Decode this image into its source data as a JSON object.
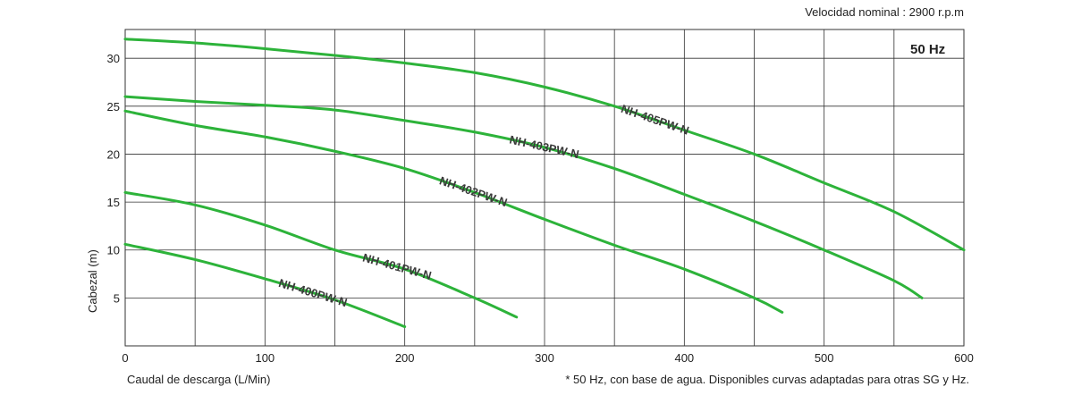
{
  "header": {
    "speed_label": "Velocidad nominal : 2900 r.p.m"
  },
  "freq_label": "50 Hz",
  "footnote": "* 50 Hz, con base de agua.  Disponibles curvas adaptadas para otras SG y Hz.",
  "colors": {
    "curve": "#2db33a",
    "grid": "#333333",
    "label": "#3a3a3a"
  },
  "chart_data": {
    "type": "line",
    "title": "",
    "xlabel": "Caudal de descarga (L/Min)",
    "ylabel": "Cabezal (m)",
    "xlim": [
      0,
      600
    ],
    "ylim": [
      0,
      33
    ],
    "x_ticks": [
      0,
      100,
      200,
      300,
      400,
      500,
      600
    ],
    "y_ticks": [
      5,
      10,
      15,
      20,
      25,
      30
    ],
    "grid": true,
    "legend": "none",
    "series": [
      {
        "name": "NH-400PW-N",
        "x": [
          0,
          50,
          100,
          150,
          200
        ],
        "y": [
          10.6,
          9.0,
          7.0,
          4.8,
          2.0
        ]
      },
      {
        "name": "NH-401PW-N",
        "x": [
          0,
          50,
          100,
          150,
          200,
          250,
          280
        ],
        "y": [
          16.0,
          14.7,
          12.6,
          10.0,
          8.0,
          5.0,
          3.0
        ]
      },
      {
        "name": "NH-402PW-N",
        "x": [
          0,
          50,
          100,
          150,
          200,
          250,
          300,
          350,
          400,
          450,
          470
        ],
        "y": [
          24.5,
          23.0,
          21.8,
          20.3,
          18.5,
          16.0,
          13.2,
          10.5,
          8.0,
          5.0,
          3.5
        ]
      },
      {
        "name": "NH-403PW-N",
        "x": [
          0,
          50,
          100,
          150,
          200,
          250,
          300,
          350,
          400,
          450,
          500,
          550,
          570
        ],
        "y": [
          26.0,
          25.5,
          25.1,
          24.6,
          23.5,
          22.3,
          20.7,
          18.5,
          15.8,
          13.0,
          10.0,
          6.8,
          5.0
        ]
      },
      {
        "name": "NH-405PW-N",
        "x": [
          0,
          50,
          100,
          150,
          200,
          250,
          300,
          350,
          400,
          450,
          500,
          550,
          600
        ],
        "y": [
          32.0,
          31.6,
          31.0,
          30.3,
          29.5,
          28.5,
          27.0,
          25.0,
          22.5,
          20.0,
          17.0,
          14.0,
          10.0
        ]
      }
    ],
    "curve_label_x": [
      110,
      170,
      225,
      275,
      355
    ]
  }
}
